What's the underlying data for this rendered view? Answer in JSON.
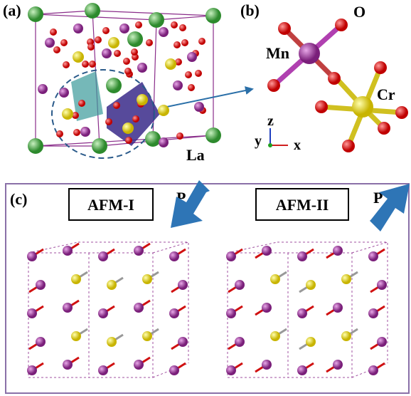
{
  "panel_a": {
    "label": "(a)",
    "atom_label": "La"
  },
  "panel_b": {
    "label": "(b)",
    "atoms": [
      "Mn",
      "O",
      "Cr"
    ],
    "axes": [
      "z",
      "y",
      "x"
    ]
  },
  "panel_c": {
    "label": "(c)",
    "configs": [
      {
        "name": "AFM-I",
        "field": "P"
      },
      {
        "name": "AFM-II",
        "field": "P"
      }
    ]
  }
}
